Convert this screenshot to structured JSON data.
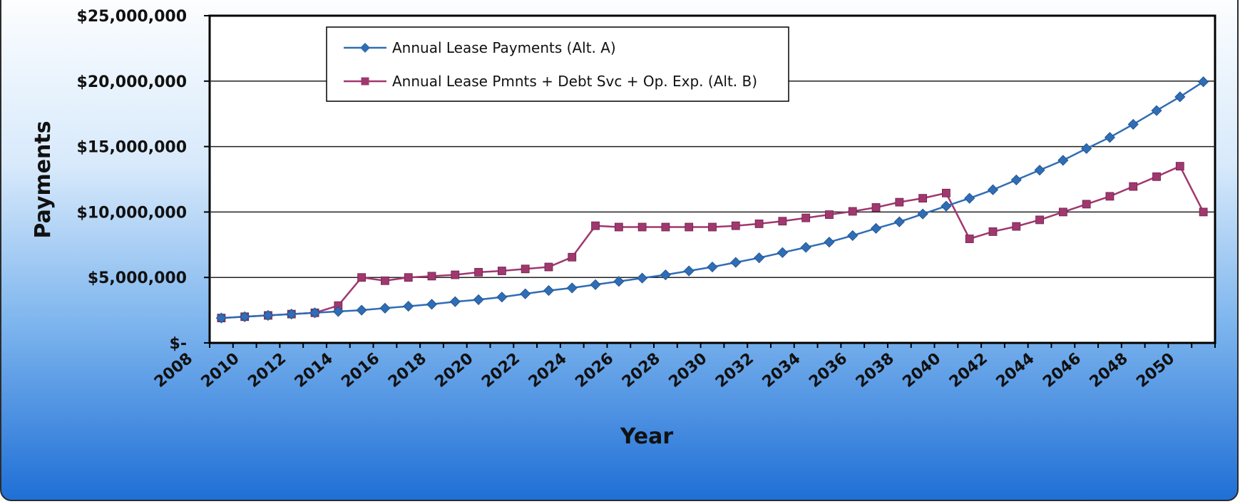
{
  "chart_data": {
    "type": "line",
    "title": "",
    "xlabel": "Year",
    "ylabel": "Payments",
    "ylim": [
      0,
      25000000
    ],
    "yticks": [
      0,
      5000000,
      10000000,
      15000000,
      20000000,
      25000000
    ],
    "ytick_labels": [
      "$-",
      "$5,000,000",
      "$10,000,000",
      "$15,000,000",
      "$20,000,000",
      "$25,000,000"
    ],
    "xtick_labels": [
      "2008",
      "2010",
      "2012",
      "2014",
      "2016",
      "2018",
      "2020",
      "2022",
      "2024",
      "2026",
      "2028",
      "2030",
      "2032",
      "2034",
      "2036",
      "2038",
      "2040",
      "2042",
      "2044",
      "2046",
      "2048",
      "2050"
    ],
    "grid": true,
    "legend": "top-left",
    "x": [
      2009,
      2010,
      2011,
      2012,
      2013,
      2014,
      2015,
      2016,
      2017,
      2018,
      2019,
      2020,
      2021,
      2022,
      2023,
      2024,
      2025,
      2026,
      2027,
      2028,
      2029,
      2030,
      2031,
      2032,
      2033,
      2034,
      2035,
      2036,
      2037,
      2038,
      2039,
      2040,
      2041,
      2042,
      2043,
      2044,
      2045,
      2046,
      2047,
      2048,
      2049,
      2050,
      2051
    ],
    "series": [
      {
        "name": "Annual Lease Payments (Alt. A)",
        "color": "#2f6db5",
        "marker": "diamond",
        "values": [
          1900000,
          2000000,
          2100000,
          2200000,
          2300000,
          2400000,
          2500000,
          2650000,
          2800000,
          2950000,
          3150000,
          3300000,
          3500000,
          3750000,
          4000000,
          4200000,
          4450000,
          4700000,
          4950000,
          5200000,
          5500000,
          5800000,
          6150000,
          6500000,
          6900000,
          7300000,
          7700000,
          8200000,
          8750000,
          9250000,
          9850000,
          10450000,
          11050000,
          11700000,
          12450000,
          13200000,
          13950000,
          14850000,
          15700000,
          16700000,
          17750000,
          18800000,
          19950000
        ]
      },
      {
        "name": "Annual Lease Pmnts + Debt Svc + Op. Exp. (Alt. B)",
        "color": "#a0386f",
        "marker": "square",
        "values": [
          1900000,
          2000000,
          2100000,
          2200000,
          2300000,
          2850000,
          5000000,
          4750000,
          5000000,
          5100000,
          5200000,
          5400000,
          5500000,
          5650000,
          5800000,
          6550000,
          8950000,
          8850000,
          8850000,
          8850000,
          8850000,
          8850000,
          8950000,
          9100000,
          9300000,
          9550000,
          9800000,
          10050000,
          10350000,
          10750000,
          11050000,
          11450000,
          7950000,
          8500000,
          8900000,
          9400000,
          10000000,
          10600000,
          11200000,
          11950000,
          12700000,
          13500000,
          10000000
        ]
      }
    ]
  }
}
